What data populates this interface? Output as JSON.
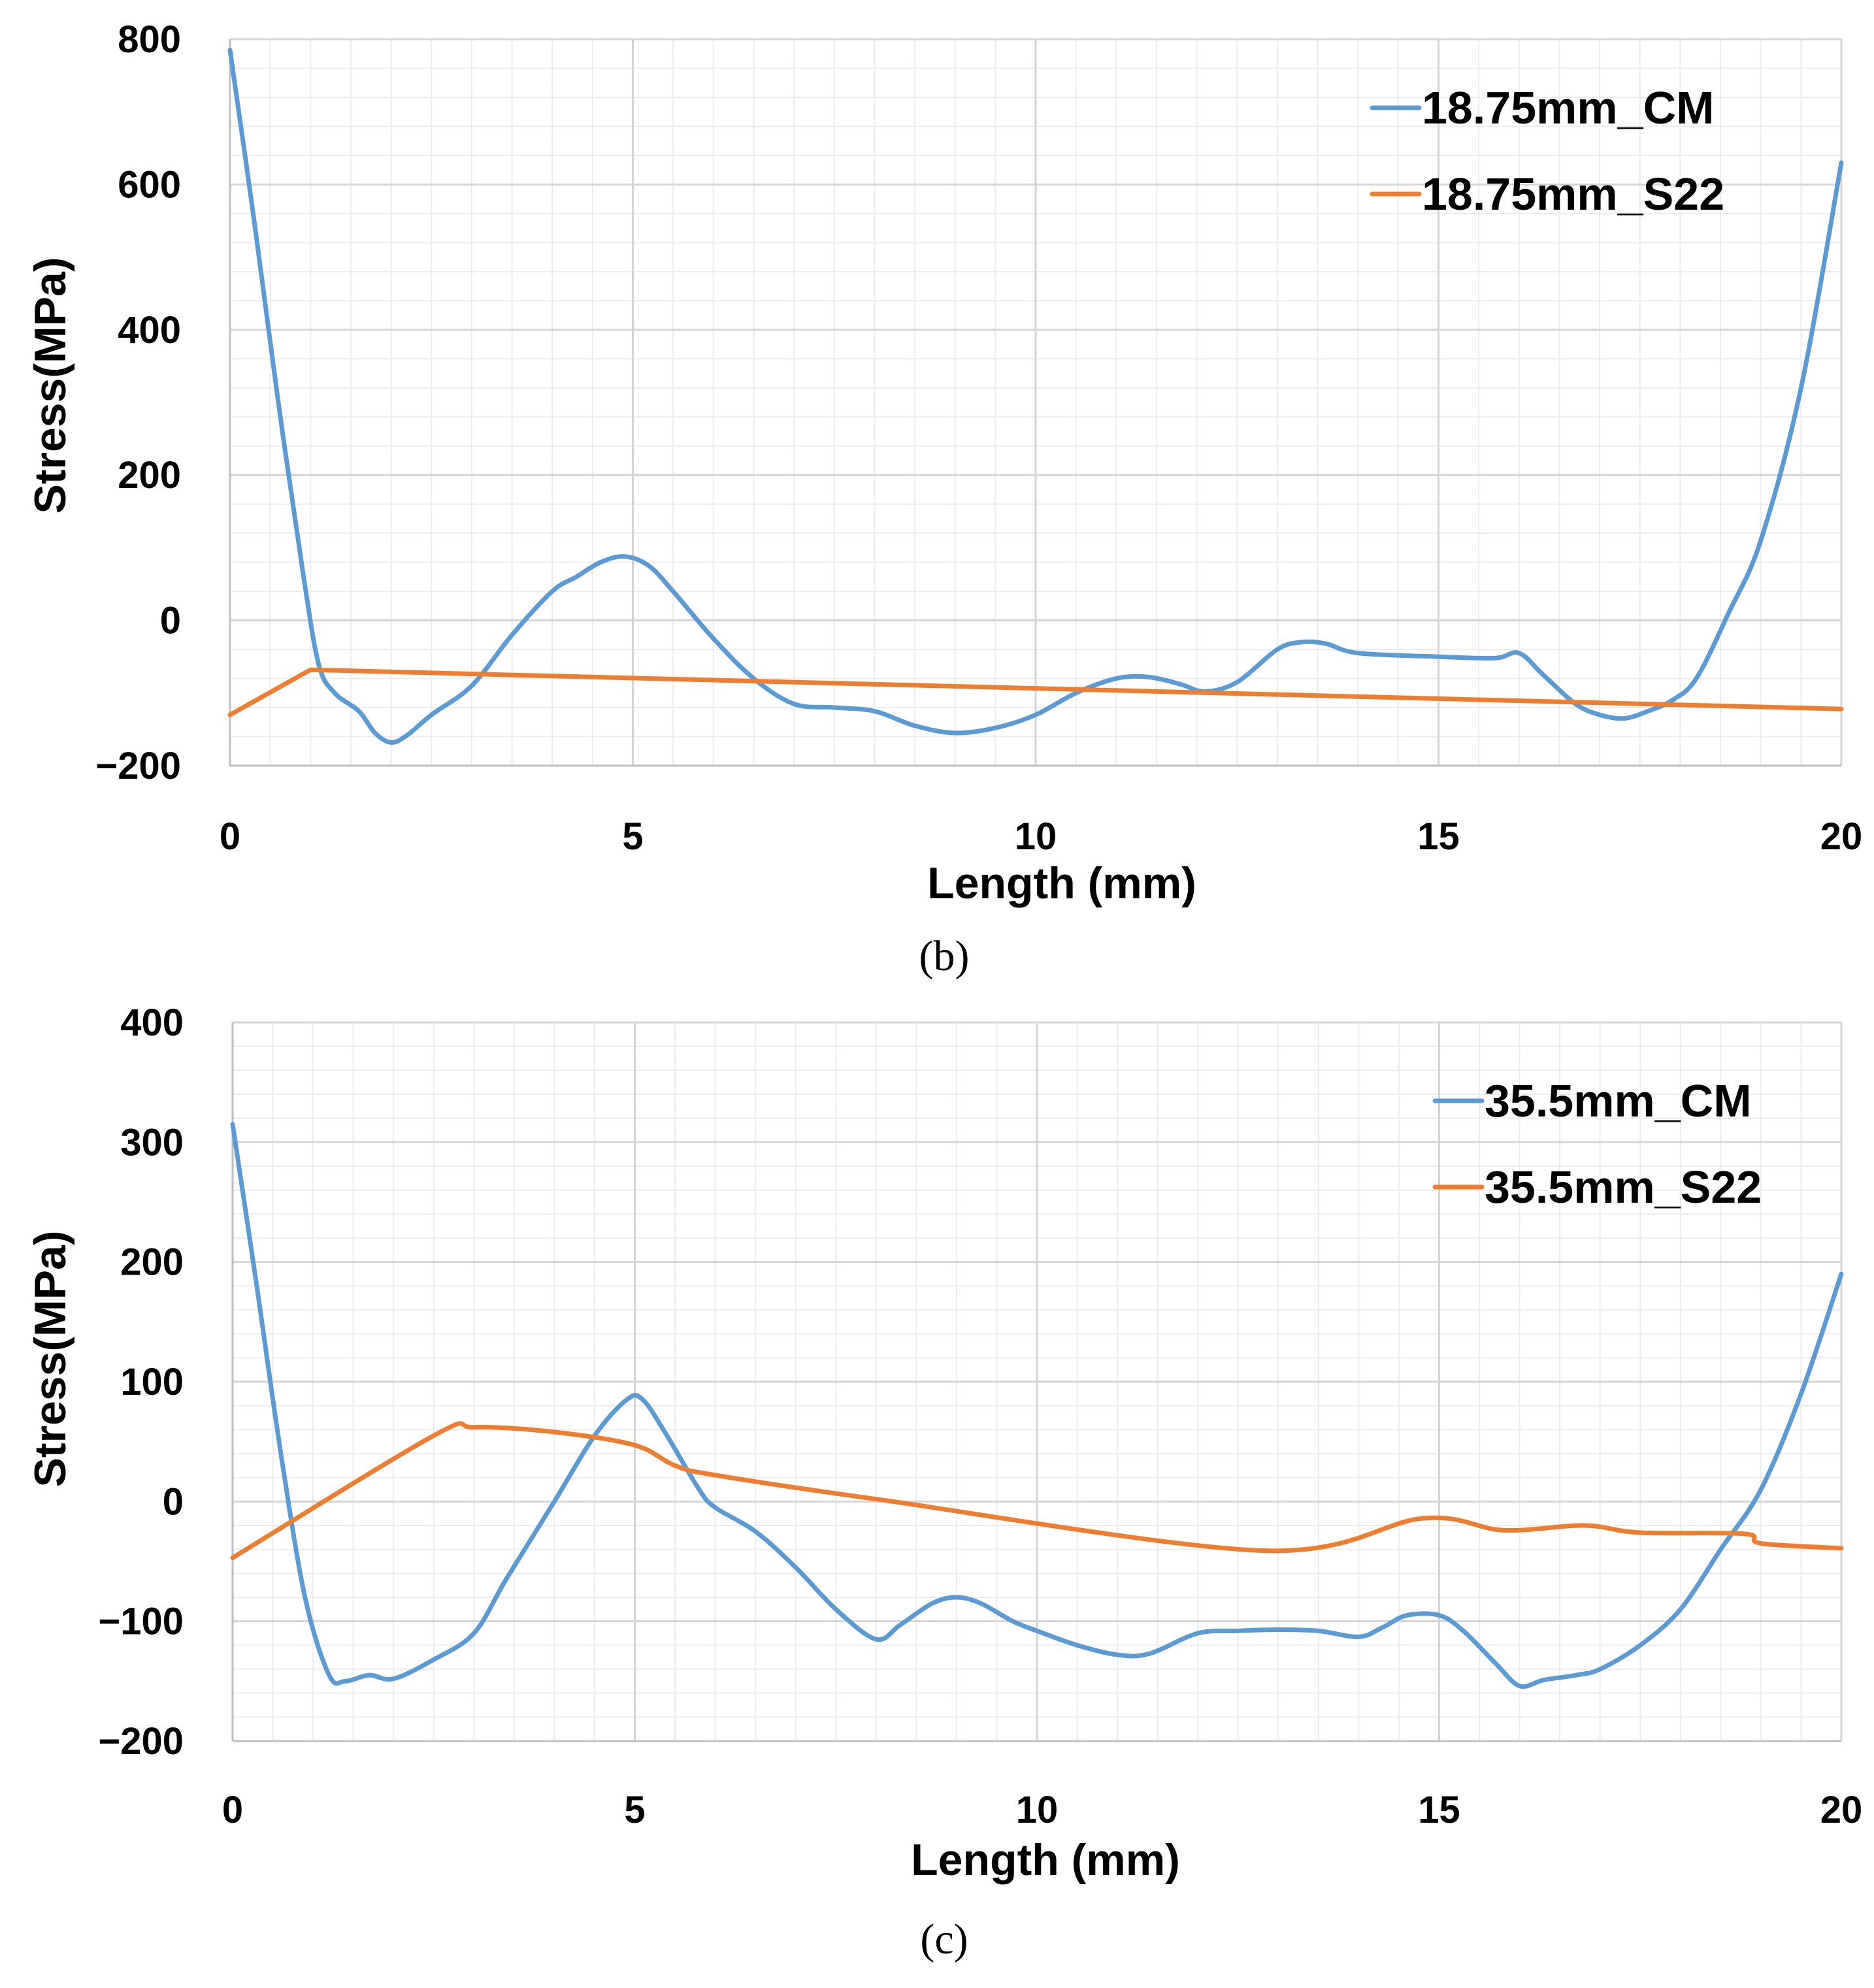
{
  "colors": {
    "cm": "#5B9BD5",
    "s22": "#ED7D31"
  },
  "chart_data": [
    {
      "type": "line",
      "caption": "(b)",
      "xlabel": "Length (mm)",
      "ylabel": "Stress(MPa)",
      "xlim": [
        0,
        20
      ],
      "ylim": [
        -200,
        800
      ],
      "xticks": [
        0,
        5,
        10,
        15,
        20
      ],
      "yticks": [
        -200,
        0,
        200,
        400,
        600,
        800
      ],
      "legend_position": "top-right",
      "series": [
        {
          "name": "18.75mm_CM",
          "color": "#5B9BD5",
          "x": [
            0,
            0.3,
            0.6,
            0.9,
            1.1,
            1.3,
            1.6,
            1.8,
            2.0,
            2.2,
            2.5,
            3.0,
            3.5,
            4.0,
            4.3,
            4.6,
            4.9,
            5.2,
            5.5,
            6.0,
            6.5,
            7.0,
            7.5,
            8.0,
            8.5,
            9.0,
            9.5,
            10.0,
            10.5,
            11.0,
            11.4,
            11.8,
            12.1,
            12.5,
            13.0,
            13.3,
            13.6,
            14.0,
            15.0,
            15.7,
            16.0,
            16.3,
            16.7,
            17.0,
            17.3,
            17.6,
            17.9,
            18.2,
            18.6,
            19.0,
            19.5,
            20.0
          ],
          "values": [
            785,
            550,
            300,
            70,
            -60,
            -100,
            -125,
            -155,
            -168,
            -158,
            -130,
            -90,
            -20,
            40,
            60,
            80,
            88,
            75,
            40,
            -25,
            -80,
            -115,
            -120,
            -125,
            -145,
            -155,
            -148,
            -130,
            -100,
            -80,
            -78,
            -88,
            -98,
            -85,
            -40,
            -30,
            -32,
            -45,
            -50,
            -52,
            -45,
            -75,
            -115,
            -130,
            -135,
            -125,
            -110,
            -80,
            10,
            110,
            320,
            630
          ]
        },
        {
          "name": "18.75mm_S22",
          "color": "#ED7D31",
          "x": [
            0,
            1.0,
            20.0
          ],
          "values": [
            -130,
            -68,
            -122
          ]
        }
      ]
    },
    {
      "type": "line",
      "caption": "(c)",
      "xlabel": "Length (mm)",
      "ylabel": "Stress(MPa)",
      "xlim": [
        0,
        20
      ],
      "ylim": [
        -200,
        400
      ],
      "xticks": [
        0,
        5,
        10,
        15,
        20
      ],
      "yticks": [
        -200,
        -100,
        0,
        100,
        200,
        300,
        400
      ],
      "legend_position": "top-right",
      "series": [
        {
          "name": "35.5mm_CM",
          "color": "#5B9BD5",
          "x": [
            0,
            0.3,
            0.6,
            0.9,
            1.2,
            1.4,
            1.7,
            2.0,
            2.5,
            3.0,
            3.4,
            4.0,
            4.5,
            4.9,
            5.1,
            5.4,
            5.8,
            6.0,
            6.5,
            7.0,
            7.5,
            8.0,
            8.3,
            8.7,
            9.0,
            9.3,
            9.7,
            10.0,
            10.5,
            11.0,
            11.4,
            12.0,
            12.5,
            13.0,
            13.5,
            14.0,
            14.3,
            14.6,
            15.0,
            15.3,
            15.7,
            16.0,
            16.3,
            16.7,
            17.0,
            17.5,
            18.0,
            18.5,
            19.0,
            19.5,
            20.0
          ],
          "values": [
            315,
            180,
            40,
            -80,
            -145,
            -150,
            -145,
            -148,
            -132,
            -110,
            -65,
            0,
            55,
            85,
            85,
            55,
            10,
            -5,
            -25,
            -55,
            -90,
            -115,
            -103,
            -85,
            -80,
            -85,
            -100,
            -108,
            -120,
            -128,
            -127,
            -110,
            -108,
            -107,
            -108,
            -113,
            -105,
            -95,
            -95,
            -108,
            -135,
            -154,
            -149,
            -145,
            -140,
            -120,
            -90,
            -40,
            10,
            90,
            190
          ]
        },
        {
          "name": "35.5mm_S22",
          "color": "#ED7D31",
          "x": [
            0,
            2.5,
            3.0,
            4.0,
            5.0,
            5.5,
            6.0,
            8.0,
            12.8,
            14.8,
            15.8,
            16.8,
            17.5,
            18.8,
            19.0,
            20.0
          ],
          "values": [
            -47,
            55,
            62,
            58,
            47,
            30,
            22,
            2,
            -41,
            -14,
            -24,
            -20,
            -26,
            -27,
            -35,
            -39
          ]
        }
      ]
    }
  ]
}
